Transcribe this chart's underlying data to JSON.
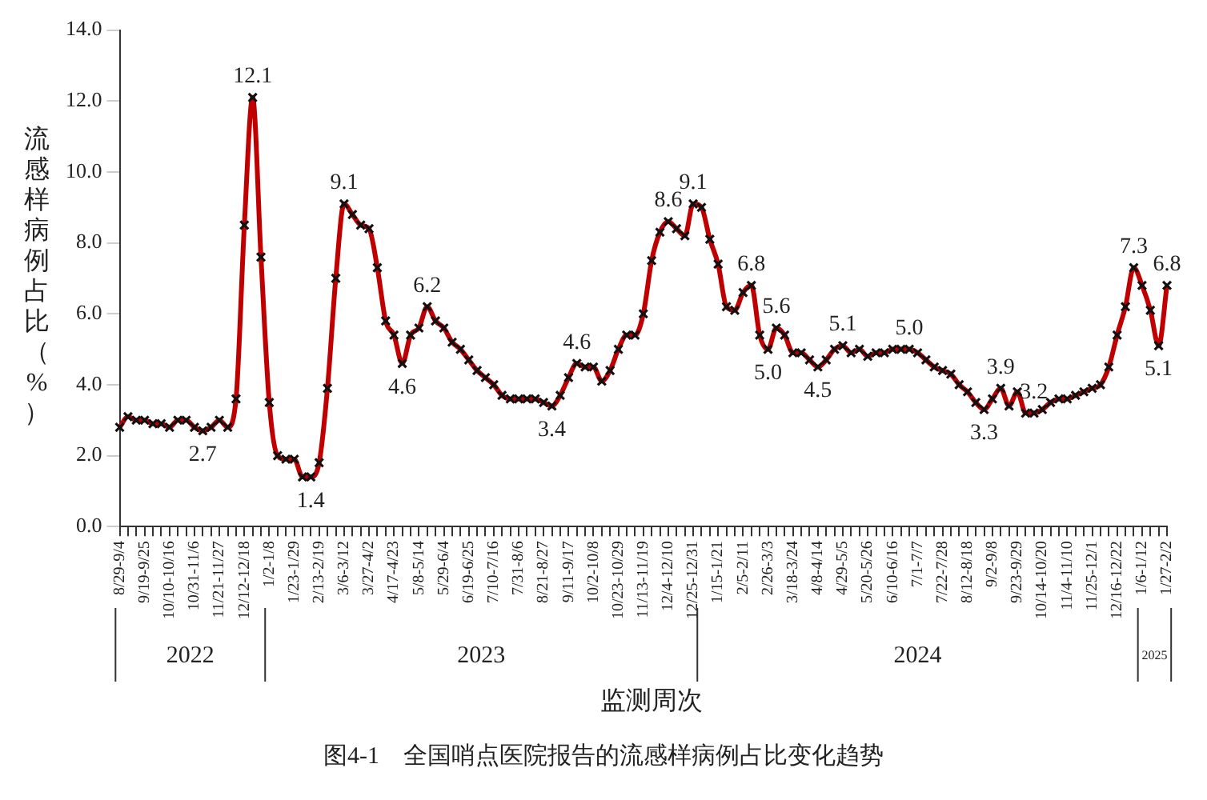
{
  "chart_data": {
    "type": "line",
    "title": "图4-1　全国哨点医院报告的流感样病例占比变化趋势",
    "xlabel": "监测周次",
    "ylabel": "流感样病例占比（%）",
    "categories": [
      "8/29-9/4",
      null,
      null,
      "9/19-9/25",
      null,
      null,
      "10/10-10/16",
      null,
      null,
      "10/31-11/6",
      null,
      null,
      "11/21-11/27",
      null,
      null,
      "12/12-12/18",
      null,
      null,
      "1/2-1/8",
      null,
      null,
      "1/23-1/29",
      null,
      null,
      "2/13-2/19",
      null,
      null,
      "3/6-3/12",
      null,
      null,
      "3/27-4/2",
      null,
      null,
      "4/17-4/23",
      null,
      null,
      "5/8-5/14",
      null,
      null,
      "5/29-6/4",
      null,
      null,
      "6/19-6/25",
      null,
      null,
      "7/10-7/16",
      null,
      null,
      "7/31-8/6",
      null,
      null,
      "8/21-8/27",
      null,
      null,
      "9/11-9/17",
      null,
      null,
      "10/2-10/8",
      null,
      null,
      "10/23-10/29",
      null,
      null,
      "11/13-11/19",
      null,
      null,
      "12/4-12/10",
      null,
      null,
      "12/25-12/31",
      null,
      null,
      "1/15-1/21",
      null,
      null,
      "2/5-2/11",
      null,
      null,
      "2/26-3/3",
      null,
      null,
      "3/18-3/24",
      null,
      null,
      "4/8-4/14",
      null,
      null,
      "4/29-5/5",
      null,
      null,
      "5/20-5/26",
      null,
      null,
      "6/10-6/16",
      null,
      null,
      "7/1-7/7",
      null,
      null,
      "7/22-7/28",
      null,
      null,
      "8/12-8/18",
      null,
      null,
      "9/2-9/8",
      null,
      null,
      "9/23-9/29",
      null,
      null,
      "10/14-10/20",
      null,
      null,
      "11/4-11/10",
      null,
      null,
      "11/25-12/1",
      null,
      null,
      "12/16-12/22",
      null,
      null,
      "1/6-1/12",
      null,
      null,
      "1/27-2/2"
    ],
    "series": [
      {
        "color": "#c00000",
        "values": [
          2.8,
          3.1,
          3.0,
          3.0,
          2.9,
          2.9,
          2.8,
          3.0,
          3.0,
          2.8,
          2.7,
          2.8,
          3.0,
          2.8,
          3.6,
          8.5,
          12.1,
          7.6,
          3.5,
          2.0,
          1.9,
          1.9,
          1.4,
          1.4,
          1.8,
          3.9,
          7.0,
          9.1,
          8.8,
          8.5,
          8.4,
          7.3,
          5.8,
          5.4,
          4.6,
          5.4,
          5.6,
          6.2,
          5.8,
          5.6,
          5.2,
          5.0,
          4.7,
          4.4,
          4.2,
          4.0,
          3.7,
          3.6,
          3.6,
          3.6,
          3.6,
          3.5,
          3.4,
          3.7,
          4.2,
          4.6,
          4.5,
          4.5,
          4.1,
          4.4,
          5.0,
          5.4,
          5.4,
          6.0,
          7.5,
          8.3,
          8.6,
          8.4,
          8.2,
          9.1,
          9.0,
          8.1,
          7.4,
          6.2,
          6.1,
          6.6,
          6.8,
          5.4,
          5.0,
          5.6,
          5.4,
          4.9,
          4.9,
          4.7,
          4.5,
          4.7,
          5.0,
          5.1,
          4.9,
          5.0,
          4.8,
          4.9,
          4.9,
          5.0,
          5.0,
          5.0,
          4.9,
          4.7,
          4.5,
          4.4,
          4.3,
          4.0,
          3.8,
          3.5,
          3.3,
          3.6,
          3.9,
          3.4,
          3.8,
          3.2,
          3.2,
          3.3,
          3.5,
          3.6,
          3.6,
          3.7,
          3.8,
          3.9,
          4.0,
          4.5,
          5.4,
          6.2,
          7.3,
          6.8,
          6.1,
          5.1,
          6.8
        ],
        "value_labels": [
          null,
          null,
          null,
          null,
          null,
          null,
          null,
          null,
          null,
          null,
          "2.7",
          null,
          null,
          null,
          null,
          null,
          "12.1",
          null,
          null,
          null,
          null,
          null,
          null,
          "1.4",
          null,
          null,
          null,
          "9.1",
          null,
          null,
          null,
          null,
          null,
          null,
          "4.6",
          null,
          null,
          "6.2",
          null,
          null,
          null,
          null,
          null,
          null,
          null,
          null,
          null,
          null,
          null,
          null,
          null,
          null,
          "3.4",
          null,
          null,
          "4.6",
          null,
          null,
          null,
          null,
          null,
          null,
          null,
          null,
          null,
          null,
          "8.6",
          null,
          null,
          "9.1",
          null,
          null,
          null,
          null,
          null,
          null,
          "6.8",
          null,
          "5.0",
          "5.6",
          null,
          null,
          null,
          null,
          "4.5",
          null,
          null,
          "5.1",
          null,
          null,
          null,
          null,
          null,
          null,
          null,
          "5.0",
          null,
          null,
          null,
          null,
          null,
          null,
          null,
          null,
          "3.3",
          null,
          "3.9",
          null,
          null,
          null,
          "3.2",
          null,
          null,
          null,
          null,
          null,
          null,
          null,
          null,
          null,
          null,
          null,
          "7.3",
          null,
          null,
          "5.1",
          "6.8"
        ]
      }
    ],
    "annotations": [
      "2022",
      "2023",
      "2024",
      "2025"
    ],
    "ylim": [
      0,
      14
    ],
    "yticks": [
      {
        "value": 0,
        "label": "0.0"
      },
      {
        "value": 2,
        "label": "2.0"
      },
      {
        "value": 4,
        "label": "4.0"
      },
      {
        "value": 6,
        "label": "6.0"
      },
      {
        "value": 8,
        "label": "8.0"
      },
      {
        "value": 10,
        "label": "10.0"
      },
      {
        "value": 12,
        "label": "12.0"
      },
      {
        "value": 14,
        "label": "14.0"
      }
    ],
    "grid": false,
    "legend": false,
    "marker": "cross",
    "line_style": "solid"
  }
}
